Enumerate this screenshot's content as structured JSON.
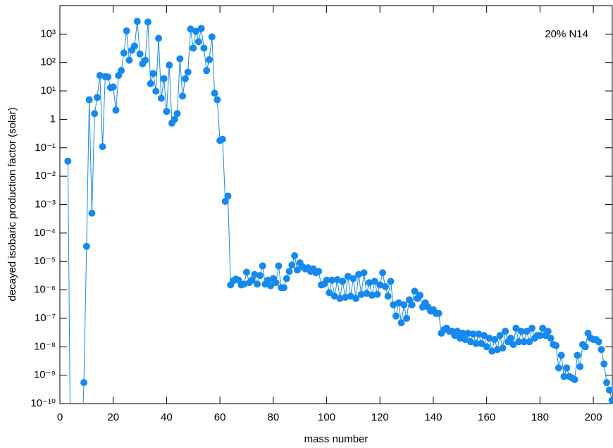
{
  "chart_data": {
    "type": "line",
    "xlabel": "mass number",
    "ylabel": "decayed isobaric production factor (solar)",
    "annotation": "20% N14",
    "color": "#1589f0",
    "log_y": true,
    "xlim": [
      0,
      207.1
    ],
    "xticks": [
      0,
      20,
      40,
      60,
      80,
      100,
      120,
      140,
      160,
      180,
      200
    ],
    "ylim": [
      1e-10,
      10000
    ],
    "yticks": [
      {
        "value": 1e-10,
        "label": "10⁻¹⁰"
      },
      {
        "value": 1e-09,
        "label": "10⁻⁹"
      },
      {
        "value": 1e-08,
        "label": "10⁻⁸"
      },
      {
        "value": 1e-07,
        "label": "10⁻⁷"
      },
      {
        "value": 1e-06,
        "label": "10⁻⁶"
      },
      {
        "value": 1e-05,
        "label": "10⁻⁵"
      },
      {
        "value": 0.0001,
        "label": "10⁻⁴"
      },
      {
        "value": 0.001,
        "label": "10⁻³"
      },
      {
        "value": 0.01,
        "label": "10⁻²"
      },
      {
        "value": 0.1,
        "label": "10⁻¹"
      },
      1,
      {
        "value": 10,
        "label": "10¹"
      },
      {
        "value": 100,
        "label": "10²"
      },
      {
        "value": 1000,
        "label": "10³"
      }
    ],
    "x": [
      3,
      4,
      8,
      9,
      10,
      11,
      12,
      13,
      14,
      15,
      16,
      17,
      18,
      19,
      20,
      21,
      22,
      23,
      24,
      25,
      26,
      27,
      28,
      29,
      30,
      31,
      32,
      33,
      34,
      35,
      36,
      37,
      38,
      39,
      40,
      41,
      42,
      43,
      44,
      45,
      46,
      47,
      48,
      49,
      50,
      51,
      52,
      53,
      54,
      55,
      56,
      57,
      58,
      59,
      60,
      61,
      62,
      63,
      64,
      65,
      66,
      67,
      68,
      69,
      70,
      71,
      72,
      73,
      74,
      75,
      76,
      77,
      78,
      79,
      80,
      81,
      82,
      83,
      84,
      85,
      86,
      87,
      88,
      89,
      90,
      91,
      92,
      93,
      94,
      95,
      96,
      97,
      98,
      99,
      100,
      101,
      102,
      103,
      104,
      105,
      106,
      107,
      108,
      109,
      110,
      111,
      112,
      113,
      114,
      115,
      116,
      117,
      118,
      119,
      120,
      121,
      122,
      123,
      124,
      125,
      126,
      127,
      128,
      129,
      130,
      131,
      132,
      133,
      134,
      135,
      136,
      137,
      138,
      139,
      140,
      141,
      142,
      143,
      144,
      145,
      146,
      147,
      148,
      149,
      150,
      151,
      152,
      153,
      154,
      155,
      156,
      157,
      158,
      159,
      160,
      161,
      162,
      163,
      164,
      165,
      166,
      167,
      168,
      169,
      170,
      171,
      172,
      173,
      174,
      175,
      176,
      177,
      178,
      179,
      180,
      181,
      182,
      183,
      184,
      185,
      186,
      187,
      188,
      189,
      190,
      191,
      192,
      193,
      194,
      195,
      196,
      197,
      198,
      199,
      200,
      201,
      202,
      203,
      204,
      205,
      206,
      207
    ],
    "values": [
      0.034,
      1e-12,
      1e-12,
      5.5e-10,
      3.4e-05,
      4.9,
      0.0005,
      1.6,
      5.9,
      35,
      0.11,
      32,
      31,
      13,
      13.8,
      2.1,
      35,
      52,
      215,
      1300,
      120,
      270,
      380,
      2800,
      200,
      90,
      120,
      2650,
      18,
      41,
      9.7,
      710,
      5.5,
      27,
      1.9,
      81,
      0.74,
      1,
      1.6,
      135,
      6.6,
      27,
      46,
      1500,
      320,
      1250,
      540,
      1580,
      320,
      52,
      125,
      800,
      8.3,
      4.9,
      0.18,
      0.2,
      0.0013,
      0.002,
      1.5e-06,
      2.1e-06,
      2.4e-06,
      2.2e-06,
      1.5e-06,
      1.6e-06,
      4.2e-06,
      1.8e-06,
      2.2e-06,
      3.5e-06,
      1.6e-06,
      3.2e-06,
      7e-06,
      1.6e-06,
      2.2e-06,
      1.4e-06,
      2.5e-06,
      1.8e-06,
      7e-06,
      1.2e-06,
      1.2e-06,
      2.5e-06,
      4.5e-06,
      7.5e-06,
      1.6e-05,
      5e-06,
      9e-06,
      6.5e-06,
      5.5e-06,
      6e-06,
      4.5e-06,
      5.5e-06,
      4e-06,
      4.5e-06,
      1.5e-06,
      1.6e-06,
      2.2e-06,
      8e-07,
      2.2e-06,
      6e-07,
      2.3e-06,
      5e-07,
      2e-06,
      5.5e-07,
      3e-06,
      6e-07,
      2.5e-06,
      5e-07,
      3.5e-06,
      7e-07,
      4e-06,
      7.5e-07,
      1.8e-06,
      6.5e-07,
      2e-06,
      7e-07,
      1.5e-06,
      4e-06,
      1.3e-06,
      6e-07,
      2e-06,
      3e-07,
      1.2e-07,
      3.5e-07,
      7e-08,
      3e-07,
      1e-07,
      4.5e-07,
      3e-07,
      9e-07,
      5e-07,
      6.5e-07,
      2.5e-07,
      3.5e-07,
      2.5e-07,
      1.8e-07,
      2e-07,
      1.5e-07,
      1.5e-07,
      3e-08,
      4e-08,
      4.5e-08,
      3.5e-08,
      3.5e-08,
      2.5e-08,
      3.5e-08,
      2e-08,
      3e-08,
      1.8e-08,
      3e-08,
      1.5e-08,
      2.8e-08,
      1.3e-08,
      2.8e-08,
      1.3e-08,
      2.5e-08,
      1e-08,
      2e-08,
      7e-09,
      1.8e-08,
      8e-09,
      2.5e-08,
      9e-09,
      3.5e-08,
      1.5e-08,
      2e-08,
      1.2e-08,
      4.5e-08,
      1.5e-08,
      3.5e-08,
      1.5e-08,
      3.5e-08,
      1.5e-08,
      4.5e-08,
      2e-08,
      2.5e-08,
      2.5e-08,
      4.5e-08,
      2.5e-08,
      3.5e-08,
      2e-08,
      1.2e-08,
      1.1e-08,
      1.8e-09,
      5e-09,
      9e-10,
      1.8e-09,
      9e-10,
      8e-10,
      7e-10,
      5e-09,
      2e-09,
      1.2e-08,
      1e-08,
      3e-08,
      2e-08,
      1.8e-08,
      1.8e-08,
      1.5e-08,
      8e-09,
      2.5e-09,
      5.5e-10,
      3e-10,
      1.3e-10
    ]
  }
}
